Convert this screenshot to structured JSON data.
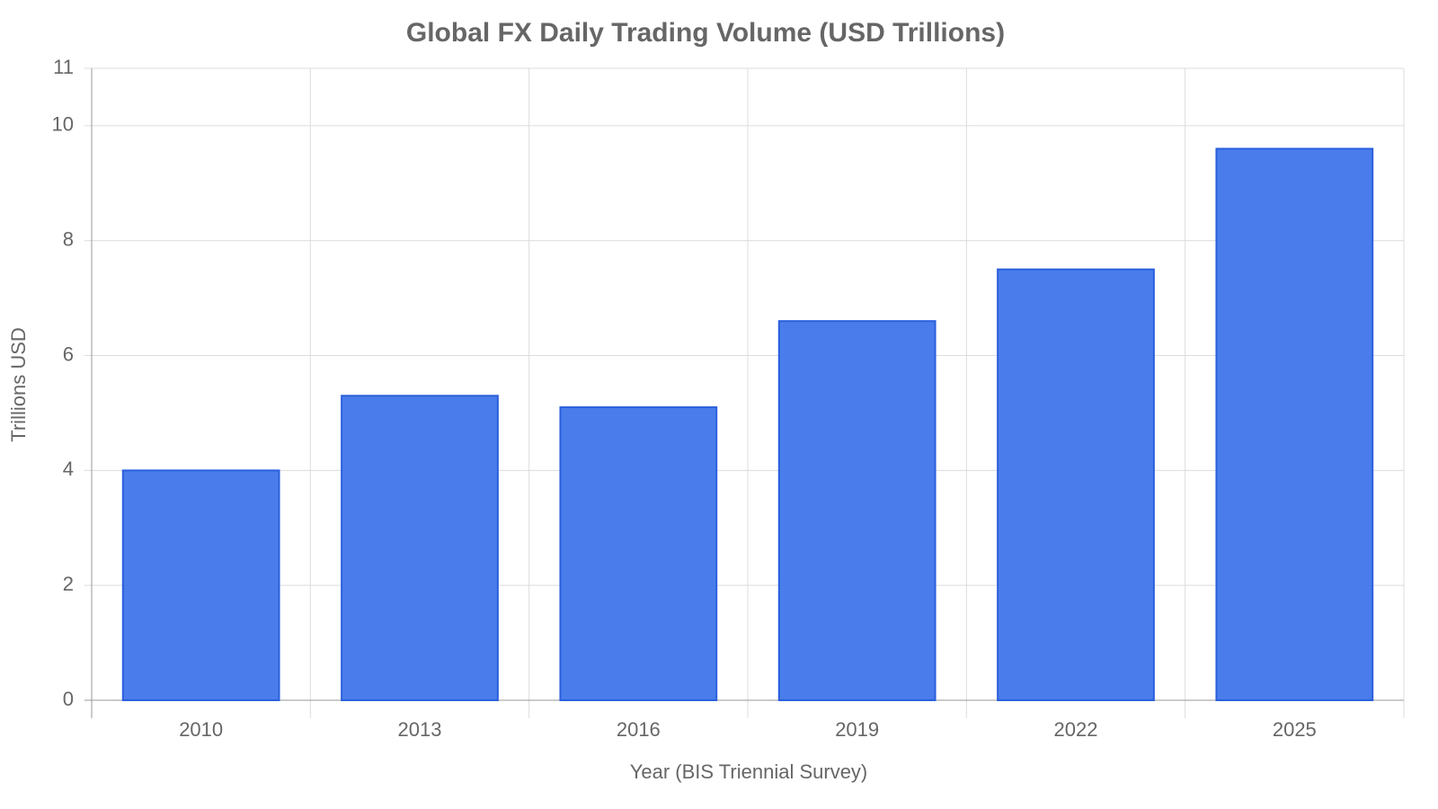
{
  "chart_data": {
    "type": "bar",
    "title": "Global FX Daily Trading Volume (USD Trillions)",
    "x_label": "Year (BIS Triennial Survey)",
    "y_label": "Trillions USD",
    "categories": [
      "2010",
      "2013",
      "2016",
      "2019",
      "2022",
      "2025"
    ],
    "values": [
      4.0,
      5.3,
      5.1,
      6.6,
      7.5,
      9.6
    ],
    "color": "#4479ea",
    "ylim": [
      0,
      11
    ],
    "yticks": [
      0,
      2,
      4,
      6,
      8,
      10,
      11
    ],
    "grid": true
  }
}
